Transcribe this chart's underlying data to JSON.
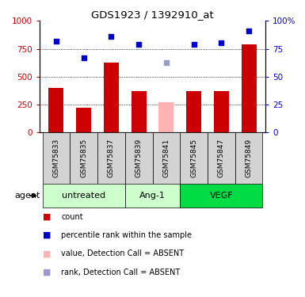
{
  "title": "GDS1923 / 1392910_at",
  "samples": [
    "GSM75833",
    "GSM75835",
    "GSM75837",
    "GSM75839",
    "GSM75841",
    "GSM75845",
    "GSM75847",
    "GSM75849"
  ],
  "bar_values": [
    400,
    220,
    630,
    375,
    270,
    370,
    375,
    790
  ],
  "bar_colors": [
    "#cc0000",
    "#cc0000",
    "#cc0000",
    "#cc0000",
    "#ffb3b3",
    "#cc0000",
    "#cc0000",
    "#cc0000"
  ],
  "rank_values": [
    82,
    67,
    86,
    79,
    63,
    79,
    80,
    91
  ],
  "rank_colors": [
    "#0000cc",
    "#0000cc",
    "#0000cc",
    "#0000cc",
    "#9999cc",
    "#0000cc",
    "#0000cc",
    "#0000cc"
  ],
  "ylim_left": [
    0,
    1000
  ],
  "ylim_right": [
    0,
    100
  ],
  "yticks_left": [
    0,
    250,
    500,
    750,
    1000
  ],
  "yticks_right": [
    0,
    25,
    50,
    75,
    100
  ],
  "left_tick_color": "#cc0000",
  "right_tick_color": "#0000cc",
  "hline_values": [
    250,
    500,
    750
  ],
  "bar_width": 0.55,
  "group_defs": [
    {
      "indices": [
        0,
        1,
        2
      ],
      "label": "untreated",
      "color": "#ccffcc"
    },
    {
      "indices": [
        3,
        4
      ],
      "label": "Ang-1",
      "color": "#ccffcc"
    },
    {
      "indices": [
        5,
        6,
        7
      ],
      "label": "VEGF",
      "color": "#00dd44"
    }
  ],
  "legend_labels": [
    "count",
    "percentile rank within the sample",
    "value, Detection Call = ABSENT",
    "rank, Detection Call = ABSENT"
  ],
  "legend_colors": [
    "#cc0000",
    "#0000cc",
    "#ffb3b3",
    "#9999cc"
  ],
  "agent_label": "agent"
}
